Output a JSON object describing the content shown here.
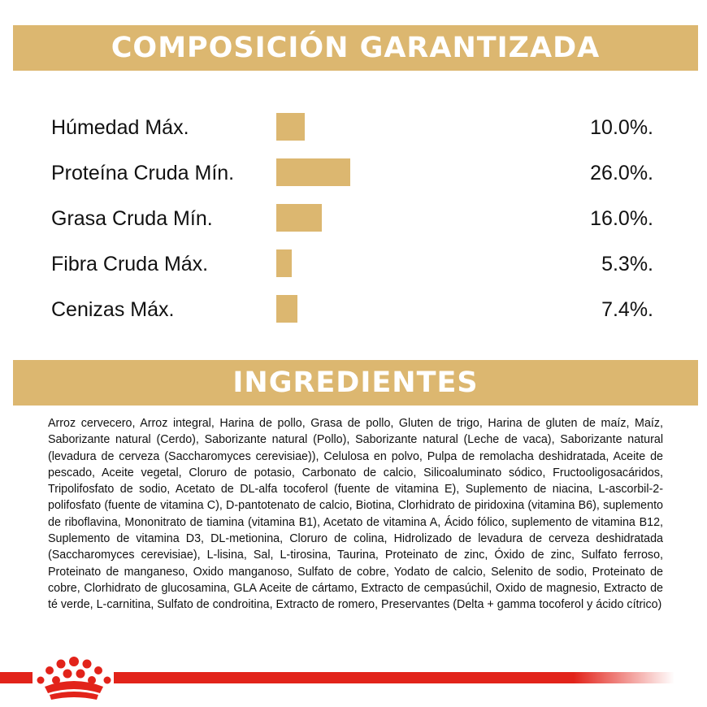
{
  "colors": {
    "gold": "#dcb770",
    "red": "#e2231a",
    "text": "#111111"
  },
  "composition": {
    "title": "COMPOSICIÓN GARANTIZADA",
    "rows": [
      {
        "label": "Húmedad Máx.",
        "value": "10.0%.",
        "percent": 10.0
      },
      {
        "label": "Proteína Cruda Mín.",
        "value": "26.0%.",
        "percent": 26.0
      },
      {
        "label": "Grasa Cruda Mín.",
        "value": "16.0%.",
        "percent": 16.0
      },
      {
        "label": "Fibra Cruda Máx.",
        "value": "5.3%.",
        "percent": 5.3
      },
      {
        "label": "Cenizas Máx.",
        "value": "7.4%.",
        "percent": 7.4
      }
    ]
  },
  "ingredients": {
    "title": "INGREDIENTES",
    "text": "Arroz cervecero, Arroz integral, Harina de pollo, Grasa de pollo, Gluten de trigo, Harina de gluten de maíz, Maíz, Saborizante natural (Cerdo), Saborizante natural (Pollo), Saborizante natural (Leche de vaca), Saborizante natural (levadura de cerveza (Saccharomyces cerevisiae)), Celulosa en polvo, Pulpa de remolacha deshidratada, Aceite de pescado, Aceite vegetal, Cloruro de potasio, Carbonato de calcio, Silicoaluminato sódico, Fructooligosacáridos, Tripolifosfato de sodio, Acetato de DL-alfa tocoferol (fuente de vitamina E), Suplemento de niacina, L-ascorbil-2-polifosfato (fuente de vitamina C), D-pantotenato de calcio, Biotina, Clorhidrato de piridoxina (vitamina B6), suplemento de riboflavina, Mononitrato de tiamina (vitamina B1), Acetato de vitamina A, Ácido fólico, suplemento de vitamina B12, Suplemento de vitamina D3, DL-metionina, Cloruro de colina, Hidrolizado de levadura de cerveza deshidratada (Saccharomyces cerevisiae), L-lisina, Sal, L-tirosina, Taurina, Proteinato de zinc, Óxido de zinc, Sulfato ferroso, Proteinato de manganeso, Oxido manganoso, Sulfato de cobre, Yodato de calcio, Selenito de sodio, Proteinato de cobre, Clorhidrato de glucosamina, GLA Aceite de cártamo, Extracto de cempasúchil, Oxido de magnesio, Extracto de té verde, L-carnitina, Sulfato de condroitina, Extracto de romero, Preservantes (Delta + gamma tocoferol y ácido cítrico)"
  },
  "footer": {
    "logo_icon": "crown-icon"
  }
}
